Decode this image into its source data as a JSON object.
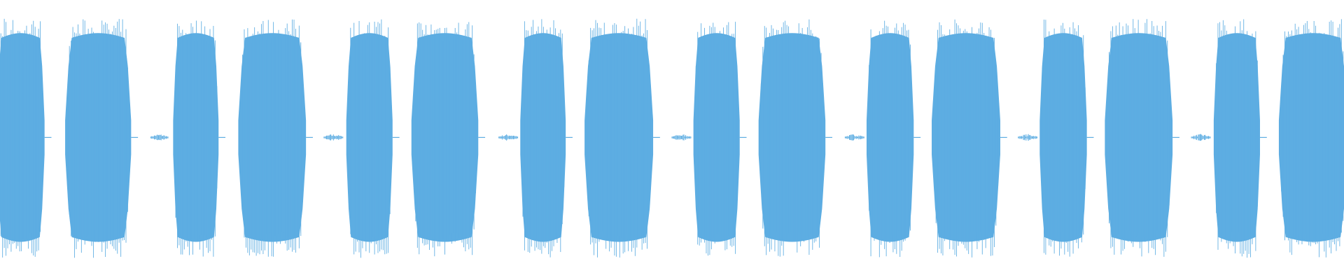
{
  "waveform": {
    "color": "#5dade2"
  }
}
